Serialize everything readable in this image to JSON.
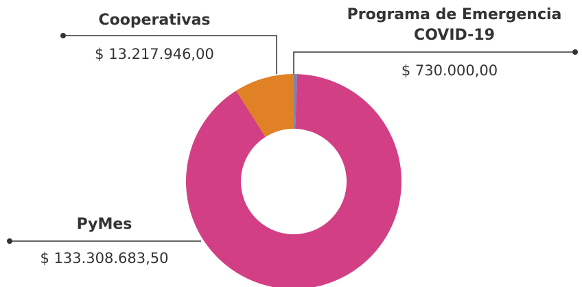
{
  "chart_data": {
    "type": "pie",
    "categories": [
      "Programa de Emergencia COVID-19",
      "PyMes",
      "Cooperativas"
    ],
    "values": [
      730000.0,
      133308683.5,
      13217946.0
    ],
    "value_labels": [
      "$ 730.000,00",
      "$ 133.308.683,50",
      "$ 13.217.946,00"
    ],
    "colors": [
      "#7a86a8",
      "#d33f85",
      "#e08126"
    ]
  }
}
